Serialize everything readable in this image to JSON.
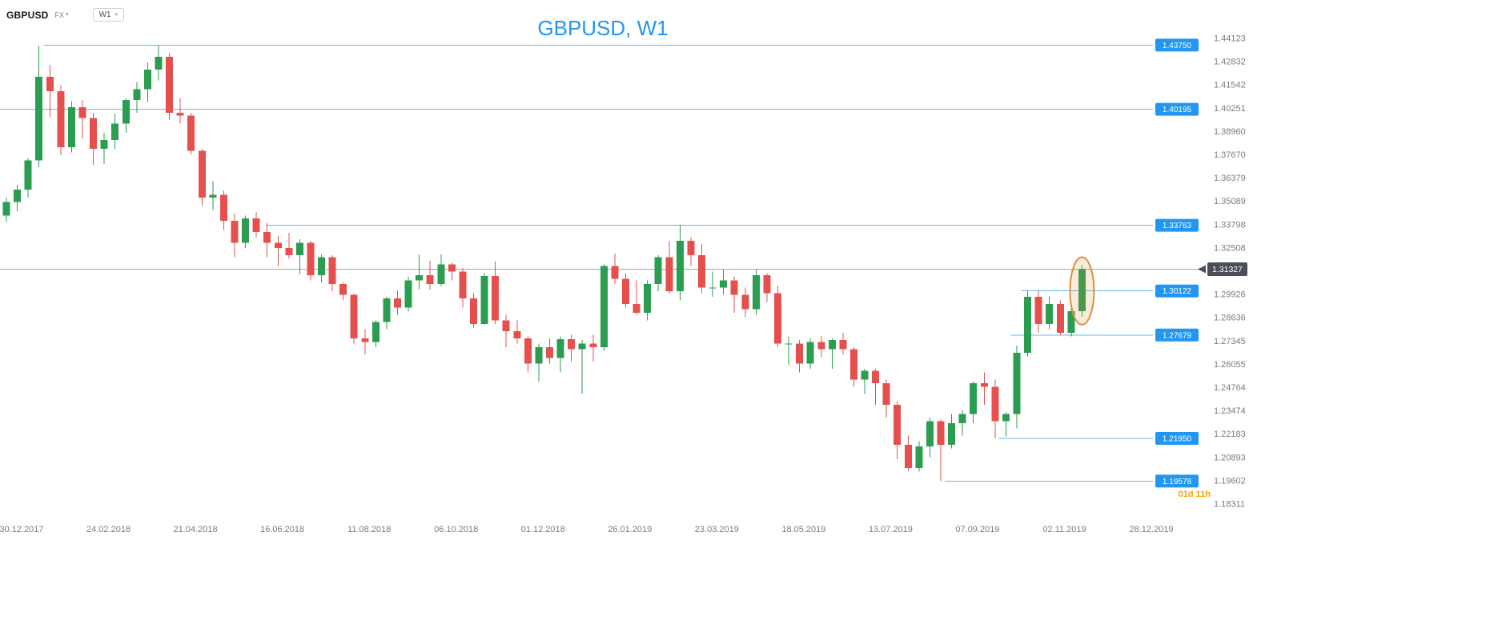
{
  "header": {
    "symbol": "GBPUSD",
    "exchange": "FX",
    "timeframe": "W1",
    "title": "GBPUSD, W1"
  },
  "footer": {
    "countdown": "01d 11h"
  },
  "colors": {
    "up": "#2a9d50",
    "down": "#e5504e",
    "level_line": "#64b5f6",
    "level_tag_bg": "#2196f3",
    "level_tag_text": "#ffffff",
    "title_blue": "#2196f3",
    "axis_text": "#787b86",
    "current_line": "#a0a3ab",
    "current_tag_bg": "#4a4e59",
    "current_tag_text": "#ffffff",
    "highlight": "#d9913f",
    "countdown_orange": "#f5a300"
  },
  "chart_data": {
    "type": "candlestick",
    "title": "GBPUSD, W1",
    "symbol": "GBPUSD",
    "timeframe": "W1",
    "ylim": [
      1.18311,
      1.44123
    ],
    "y_ticks": [
      "1.44123",
      "1.42832",
      "1.41542",
      "1.40251",
      "1.38960",
      "1.37670",
      "1.36379",
      "1.35089",
      "1.33798",
      "1.32508",
      "1.29926",
      "1.28636",
      "1.27345",
      "1.26055",
      "1.24764",
      "1.23474",
      "1.22183",
      "1.20893",
      "1.19602",
      "1.18311"
    ],
    "x_labels": [
      "30.12.2017",
      "24.02.2018",
      "21.04.2018",
      "16.06.2018",
      "11.08.2018",
      "06.10.2018",
      "01.12.2018",
      "26.01.2019",
      "23.03.2019",
      "18.05.2019",
      "13.07.2019",
      "07.09.2019",
      "02.11.2019",
      "28.12.2019"
    ],
    "current_price": {
      "label": "1.31327",
      "value": 1.31327
    },
    "levels": [
      {
        "label": "1.43750",
        "value": 1.4375,
        "x_start": 55
      },
      {
        "label": "1.40195",
        "value": 1.40195,
        "x_start": 0
      },
      {
        "label": "1.33763",
        "value": 1.33763,
        "x_start": 332
      },
      {
        "label": "1.30122",
        "value": 1.30122,
        "x_start": 1275
      },
      {
        "label": "1.27679",
        "value": 1.27679,
        "x_start": 1262
      },
      {
        "label": "1.21950",
        "value": 1.2195,
        "x_start": 1247
      },
      {
        "label": "1.19578",
        "value": 1.19578,
        "x_start": 1180
      }
    ],
    "highlight_candle_index": 99,
    "candles": [
      [
        1.343,
        1.353,
        1.3395,
        1.3505
      ],
      [
        1.3505,
        1.36,
        1.3455,
        1.3575
      ],
      [
        1.3575,
        1.375,
        1.353,
        1.3735
      ],
      [
        1.3735,
        1.437,
        1.37,
        1.42
      ],
      [
        1.42,
        1.4265,
        1.3975,
        1.412
      ],
      [
        1.412,
        1.415,
        1.3765,
        1.381
      ],
      [
        1.381,
        1.4065,
        1.378,
        1.403
      ],
      [
        1.403,
        1.407,
        1.3855,
        1.397
      ],
      [
        1.397,
        1.4,
        1.371,
        1.38
      ],
      [
        1.38,
        1.389,
        1.3715,
        1.385
      ],
      [
        1.385,
        1.3995,
        1.38,
        1.394
      ],
      [
        1.394,
        1.408,
        1.389,
        1.407
      ],
      [
        1.407,
        1.417,
        1.4,
        1.413
      ],
      [
        1.413,
        1.428,
        1.406,
        1.424
      ],
      [
        1.424,
        1.4375,
        1.418,
        1.431
      ],
      [
        1.431,
        1.433,
        1.396,
        1.4
      ],
      [
        1.4,
        1.408,
        1.394,
        1.3985
      ],
      [
        1.3985,
        1.4,
        1.377,
        1.379
      ],
      [
        1.379,
        1.38,
        1.3485,
        1.353
      ],
      [
        1.353,
        1.362,
        1.346,
        1.3545
      ],
      [
        1.3545,
        1.357,
        1.335,
        1.34
      ],
      [
        1.34,
        1.344,
        1.32,
        1.328
      ],
      [
        1.328,
        1.343,
        1.325,
        1.3415
      ],
      [
        1.3415,
        1.345,
        1.331,
        1.334
      ],
      [
        1.334,
        1.339,
        1.32,
        1.328
      ],
      [
        1.328,
        1.332,
        1.315,
        1.325
      ],
      [
        1.325,
        1.3335,
        1.319,
        1.321
      ],
      [
        1.321,
        1.33,
        1.3105,
        1.328
      ],
      [
        1.328,
        1.329,
        1.307,
        1.31
      ],
      [
        1.31,
        1.3215,
        1.306,
        1.32
      ],
      [
        1.32,
        1.321,
        1.301,
        1.305
      ],
      [
        1.305,
        1.306,
        1.296,
        1.299
      ],
      [
        1.299,
        1.3,
        1.272,
        1.275
      ],
      [
        1.275,
        1.28,
        1.266,
        1.273
      ],
      [
        1.273,
        1.285,
        1.27,
        1.284
      ],
      [
        1.284,
        1.298,
        1.28,
        1.297
      ],
      [
        1.297,
        1.3015,
        1.288,
        1.292
      ],
      [
        1.292,
        1.309,
        1.29,
        1.307
      ],
      [
        1.307,
        1.3215,
        1.302,
        1.31
      ],
      [
        1.31,
        1.318,
        1.302,
        1.305
      ],
      [
        1.305,
        1.3215,
        1.304,
        1.316
      ],
      [
        1.316,
        1.317,
        1.307,
        1.312
      ],
      [
        1.312,
        1.314,
        1.292,
        1.297
      ],
      [
        1.297,
        1.3,
        1.281,
        1.283
      ],
      [
        1.283,
        1.311,
        1.2825,
        1.3095
      ],
      [
        1.3095,
        1.3175,
        1.283,
        1.285
      ],
      [
        1.285,
        1.288,
        1.27,
        1.279
      ],
      [
        1.279,
        1.285,
        1.272,
        1.275
      ],
      [
        1.275,
        1.276,
        1.256,
        1.261
      ],
      [
        1.261,
        1.272,
        1.251,
        1.27
      ],
      [
        1.27,
        1.275,
        1.261,
        1.264
      ],
      [
        1.264,
        1.276,
        1.256,
        1.2745
      ],
      [
        1.2745,
        1.277,
        1.262,
        1.269
      ],
      [
        1.269,
        1.274,
        1.244,
        1.272
      ],
      [
        1.272,
        1.277,
        1.262,
        1.27
      ],
      [
        1.27,
        1.316,
        1.268,
        1.315
      ],
      [
        1.315,
        1.322,
        1.305,
        1.308
      ],
      [
        1.308,
        1.311,
        1.292,
        1.294
      ],
      [
        1.294,
        1.307,
        1.288,
        1.289
      ],
      [
        1.289,
        1.307,
        1.285,
        1.305
      ],
      [
        1.305,
        1.321,
        1.301,
        1.32
      ],
      [
        1.32,
        1.329,
        1.3,
        1.301
      ],
      [
        1.301,
        1.338,
        1.296,
        1.329
      ],
      [
        1.329,
        1.331,
        1.315,
        1.321
      ],
      [
        1.321,
        1.327,
        1.3,
        1.303
      ],
      [
        1.303,
        1.312,
        1.298,
        1.303
      ],
      [
        1.303,
        1.313,
        1.299,
        1.307
      ],
      [
        1.307,
        1.309,
        1.289,
        1.299
      ],
      [
        1.299,
        1.303,
        1.287,
        1.291
      ],
      [
        1.291,
        1.313,
        1.288,
        1.31
      ],
      [
        1.31,
        1.311,
        1.295,
        1.3
      ],
      [
        1.3,
        1.304,
        1.27,
        1.272
      ],
      [
        1.272,
        1.276,
        1.26,
        1.272
      ],
      [
        1.272,
        1.274,
        1.256,
        1.261
      ],
      [
        1.261,
        1.275,
        1.258,
        1.273
      ],
      [
        1.273,
        1.2763,
        1.2647,
        1.269
      ],
      [
        1.269,
        1.275,
        1.258,
        1.274
      ],
      [
        1.274,
        1.278,
        1.266,
        1.269
      ],
      [
        1.269,
        1.27,
        1.248,
        1.252
      ],
      [
        1.252,
        1.258,
        1.244,
        1.257
      ],
      [
        1.257,
        1.258,
        1.238,
        1.25
      ],
      [
        1.25,
        1.252,
        1.231,
        1.238
      ],
      [
        1.238,
        1.24,
        1.208,
        1.216
      ],
      [
        1.216,
        1.221,
        1.2015,
        1.203
      ],
      [
        1.203,
        1.218,
        1.201,
        1.215
      ],
      [
        1.215,
        1.231,
        1.209,
        1.229
      ],
      [
        1.229,
        1.23,
        1.1958,
        1.216
      ],
      [
        1.216,
        1.233,
        1.214,
        1.228
      ],
      [
        1.228,
        1.235,
        1.221,
        1.233
      ],
      [
        1.233,
        1.251,
        1.228,
        1.25
      ],
      [
        1.25,
        1.256,
        1.238,
        1.248
      ],
      [
        1.248,
        1.252,
        1.2195,
        1.229
      ],
      [
        1.229,
        1.234,
        1.2205,
        1.233
      ],
      [
        1.233,
        1.271,
        1.225,
        1.267
      ],
      [
        1.267,
        1.301,
        1.265,
        1.298
      ],
      [
        1.298,
        1.3012,
        1.278,
        1.283
      ],
      [
        1.283,
        1.298,
        1.28,
        1.294
      ],
      [
        1.294,
        1.296,
        1.277,
        1.278
      ],
      [
        1.278,
        1.293,
        1.276,
        1.29
      ],
      [
        1.29,
        1.3155,
        1.287,
        1.31327
      ]
    ]
  }
}
